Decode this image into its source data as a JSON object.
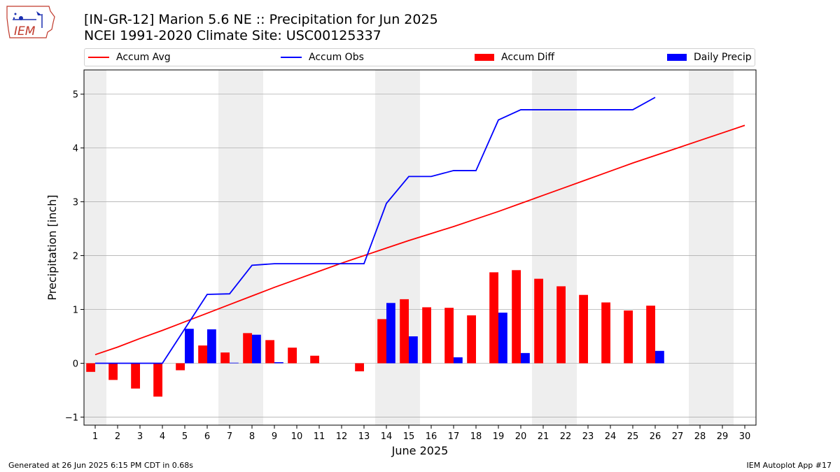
{
  "header": {
    "title_line1": "[IN-GR-12] Marion 5.6 NE :: Precipitation for Jun 2025",
    "title_line2": "NCEI 1991-2020 Climate Site: USC00125337"
  },
  "logo": {
    "text": "IEM"
  },
  "footer": {
    "left": "Generated at 26 Jun 2025 6:15 PM CDT in 0.68s",
    "right": "IEM Autoplot App #17"
  },
  "colors": {
    "avg": "#ff0000",
    "obs": "#0000ff",
    "diff": "#ff0000",
    "daily": "#0000ff",
    "weekend": "#eeeeee",
    "grid": "#b0b0b0"
  },
  "chart_data": {
    "type": "bar",
    "xlabel": "June 2025",
    "ylabel": "Precipitation [inch]",
    "ylim": [
      -1.15,
      5.45
    ],
    "xlim": [
      0.5,
      30.5
    ],
    "yticks": [
      -1,
      0,
      1,
      2,
      3,
      4,
      5
    ],
    "grid": true,
    "legend_position": "top",
    "weekend_days": [
      1,
      7,
      8,
      14,
      15,
      21,
      22,
      28,
      29
    ],
    "days": [
      1,
      2,
      3,
      4,
      5,
      6,
      7,
      8,
      9,
      10,
      11,
      12,
      13,
      14,
      15,
      16,
      17,
      18,
      19,
      20,
      21,
      22,
      23,
      24,
      25,
      26,
      27,
      28,
      29,
      30
    ],
    "series": [
      {
        "name": "Accum Avg",
        "kind": "line",
        "values": [
          0.16,
          0.3,
          0.46,
          0.61,
          0.77,
          0.93,
          1.09,
          1.25,
          1.41,
          1.56,
          1.71,
          1.86,
          2.0,
          2.14,
          2.28,
          2.41,
          2.54,
          2.68,
          2.82,
          2.97,
          3.12,
          3.27,
          3.42,
          3.57,
          3.72,
          3.86,
          4.0,
          4.14,
          4.28,
          4.42
        ]
      },
      {
        "name": "Accum Obs",
        "kind": "line",
        "values": [
          0.0,
          0.0,
          0.0,
          0.0,
          0.64,
          1.28,
          1.29,
          1.82,
          1.85,
          1.85,
          1.85,
          1.85,
          1.85,
          2.97,
          3.47,
          3.47,
          3.58,
          3.58,
          4.52,
          4.71,
          4.71,
          4.71,
          4.71,
          4.71,
          4.71,
          4.94
        ]
      },
      {
        "name": "Accum Diff",
        "kind": "bar",
        "values": [
          -0.16,
          -0.31,
          -0.47,
          -0.62,
          -0.13,
          0.33,
          0.2,
          0.56,
          0.43,
          0.29,
          0.14,
          0.0,
          -0.15,
          0.82,
          1.19,
          1.04,
          1.03,
          0.89,
          1.69,
          1.73,
          1.57,
          1.43,
          1.27,
          1.13,
          0.98,
          1.07
        ]
      },
      {
        "name": "Daily Precip",
        "kind": "bar",
        "values": [
          0.0,
          0.0,
          0.0,
          0.0,
          0.64,
          0.63,
          0.01,
          0.53,
          0.02,
          0.0,
          0.0,
          0.0,
          0.0,
          1.12,
          0.5,
          0.0,
          0.11,
          0.0,
          0.94,
          0.19,
          0.0,
          0.0,
          0.0,
          0.0,
          0.0,
          0.23
        ]
      }
    ]
  }
}
